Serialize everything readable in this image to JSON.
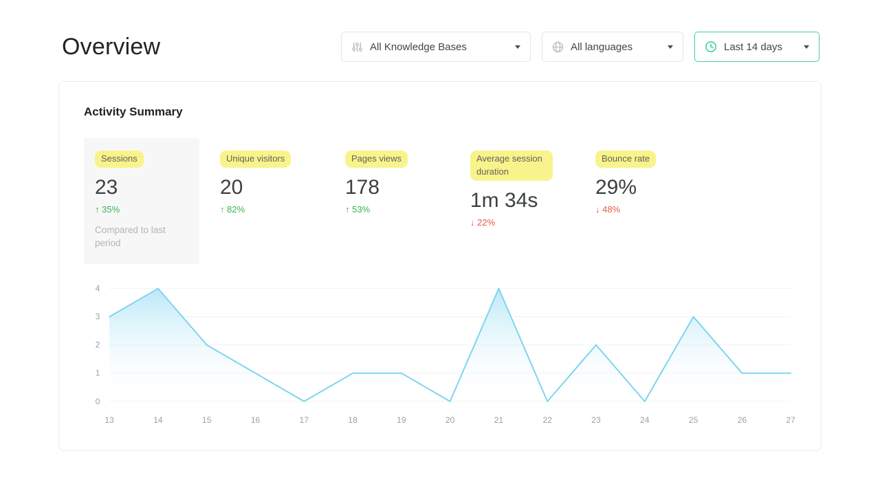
{
  "page": {
    "title": "Overview"
  },
  "filters": {
    "knowledge_bases": {
      "label": "All Knowledge Bases",
      "icon": "equalizer-icon"
    },
    "languages": {
      "label": "All languages",
      "icon": "globe-icon"
    },
    "date_range": {
      "label": "Last 14 days",
      "icon": "clock-icon",
      "accent_color": "#3fcf9c"
    }
  },
  "activity": {
    "title": "Activity Summary",
    "highlight_color": "#f9f38b",
    "metrics": [
      {
        "label": "Sessions",
        "value": "23",
        "delta": "↑ 35%",
        "delta_color": "#36b352",
        "note": "Compared to last period"
      },
      {
        "label": "Unique visitors",
        "value": "20",
        "delta": "↑ 82%",
        "delta_color": "#36b352"
      },
      {
        "label": "Pages views",
        "value": "178",
        "delta": "↑ 53%",
        "delta_color": "#36b352"
      },
      {
        "label": "Average session duration",
        "value": "1m 34s",
        "delta": "↓ 22%",
        "delta_color": "#e8594a"
      },
      {
        "label": "Bounce rate",
        "value": "29%",
        "delta": "↓ 48%",
        "delta_color": "#e8594a"
      }
    ]
  },
  "chart_data": {
    "type": "area",
    "series_name": "Sessions",
    "x": [
      13,
      14,
      15,
      16,
      17,
      18,
      19,
      20,
      21,
      22,
      23,
      24,
      25,
      26,
      27
    ],
    "values": [
      3,
      4,
      2,
      1,
      0,
      1,
      1,
      0,
      4,
      0,
      2,
      0,
      3,
      1,
      1
    ],
    "title": "",
    "xlabel": "",
    "ylabel": "",
    "ylim": [
      0,
      4
    ],
    "yticks": [
      0,
      1,
      2,
      3,
      4
    ],
    "grid": true,
    "legend": "none",
    "line_color": "#7bd4ef",
    "tick_color": "#9b9fa4"
  }
}
